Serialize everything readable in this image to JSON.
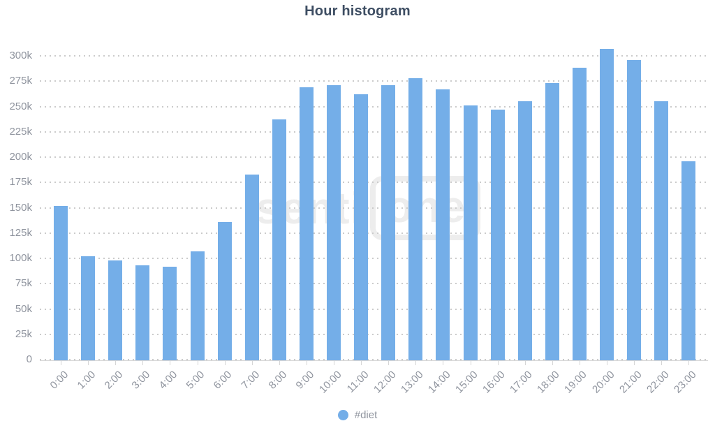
{
  "title": "Hour histogram",
  "watermark": {
    "left": "senti",
    "right": "one"
  },
  "legend": {
    "label": "#diet"
  },
  "colors": {
    "bar": "#74AEE8",
    "title": "#3E4E63",
    "axis_label": "#8F949E",
    "gridline": "#CBCBCB",
    "axis_line": "#D6D6D6",
    "watermark": "#EDEDED"
  },
  "chart_data": {
    "type": "bar",
    "title": "Hour histogram",
    "categories": [
      "0:00",
      "1:00",
      "2:00",
      "3:00",
      "4:00",
      "5:00",
      "6:00",
      "7:00",
      "8:00",
      "9:00",
      "10:00",
      "11:00",
      "12:00",
      "13:00",
      "14:00",
      "15:00",
      "16:00",
      "17:00",
      "18:00",
      "19:00",
      "20:00",
      "21:00",
      "22:00",
      "23:00"
    ],
    "series": [
      {
        "name": "#diet",
        "values": [
          152000,
          102000,
          98000,
          93000,
          92000,
          107000,
          136000,
          183000,
          237000,
          269000,
          271000,
          262000,
          271000,
          278000,
          267000,
          251000,
          247000,
          255000,
          273000,
          288000,
          307000,
          296000,
          255000,
          196000
        ]
      }
    ],
    "xlabel": "",
    "ylabel": "",
    "ylim": [
      0,
      300000
    ],
    "ytick_values": [
      0,
      25000,
      50000,
      75000,
      100000,
      125000,
      150000,
      175000,
      200000,
      225000,
      250000,
      275000,
      300000
    ],
    "ytick_labels": [
      "0",
      "25k",
      "50k",
      "75k",
      "100k",
      "125k",
      "150k",
      "175k",
      "200k",
      "225k",
      "250k",
      "275k",
      "300k"
    ],
    "grid": "horizontal-dotted",
    "legend_position": "bottom"
  }
}
